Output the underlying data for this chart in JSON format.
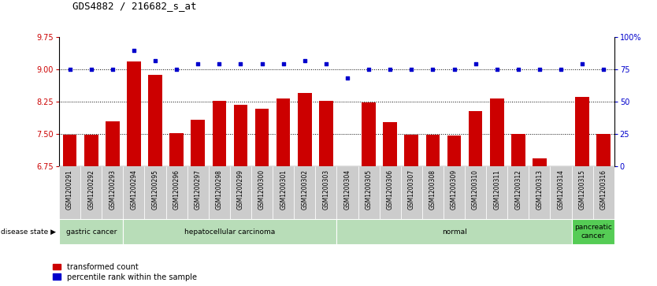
{
  "title": "GDS4882 / 216682_s_at",
  "categories": [
    "GSM1200291",
    "GSM1200292",
    "GSM1200293",
    "GSM1200294",
    "GSM1200295",
    "GSM1200296",
    "GSM1200297",
    "GSM1200298",
    "GSM1200299",
    "GSM1200300",
    "GSM1200301",
    "GSM1200302",
    "GSM1200303",
    "GSM1200304",
    "GSM1200305",
    "GSM1200306",
    "GSM1200307",
    "GSM1200308",
    "GSM1200309",
    "GSM1200310",
    "GSM1200311",
    "GSM1200312",
    "GSM1200313",
    "GSM1200314",
    "GSM1200315",
    "GSM1200316"
  ],
  "bar_values": [
    7.48,
    7.48,
    7.78,
    9.18,
    8.88,
    7.52,
    7.83,
    8.27,
    8.18,
    8.08,
    8.33,
    8.45,
    8.27,
    6.63,
    8.23,
    7.77,
    7.47,
    7.48,
    7.46,
    8.03,
    8.32,
    7.5,
    6.92,
    6.67,
    8.35,
    7.5
  ],
  "percentile_values": [
    75,
    75,
    75,
    90,
    82,
    75,
    79,
    79,
    79,
    79,
    79,
    82,
    79,
    68,
    75,
    75,
    75,
    75,
    75,
    79,
    75,
    75,
    75,
    75,
    79,
    75
  ],
  "disease_groups": [
    {
      "label": "gastric cancer",
      "start": 0,
      "end": 2
    },
    {
      "label": "hepatocellular carcinoma",
      "start": 3,
      "end": 12
    },
    {
      "label": "normal",
      "start": 13,
      "end": 23
    },
    {
      "label": "pancreatic\ncancer",
      "start": 24,
      "end": 25
    }
  ],
  "group_colors": {
    "gastric cancer": "#b8ddb8",
    "hepatocellular carcinoma": "#b8ddb8",
    "normal": "#b8ddb8",
    "pancreatic\ncancer": "#55cc55"
  },
  "ylim_left": [
    6.75,
    9.75
  ],
  "ylim_right": [
    0,
    100
  ],
  "yticks_left": [
    6.75,
    7.5,
    8.25,
    9.0,
    9.75
  ],
  "yticks_right": [
    0,
    25,
    50,
    75,
    100
  ],
  "bar_color": "#cc0000",
  "dot_color": "#0000cc",
  "bg_color": "#ffffff",
  "left_tick_color": "#cc0000",
  "right_tick_color": "#0000cc",
  "legend_red_label": "transformed count",
  "legend_blue_label": "percentile rank within the sample",
  "bar_bottom": 6.75,
  "gridline_yvals": [
    7.5,
    8.25,
    9.0
  ],
  "cell_color": "#cccccc",
  "cell_edge_color": "#ffffff"
}
